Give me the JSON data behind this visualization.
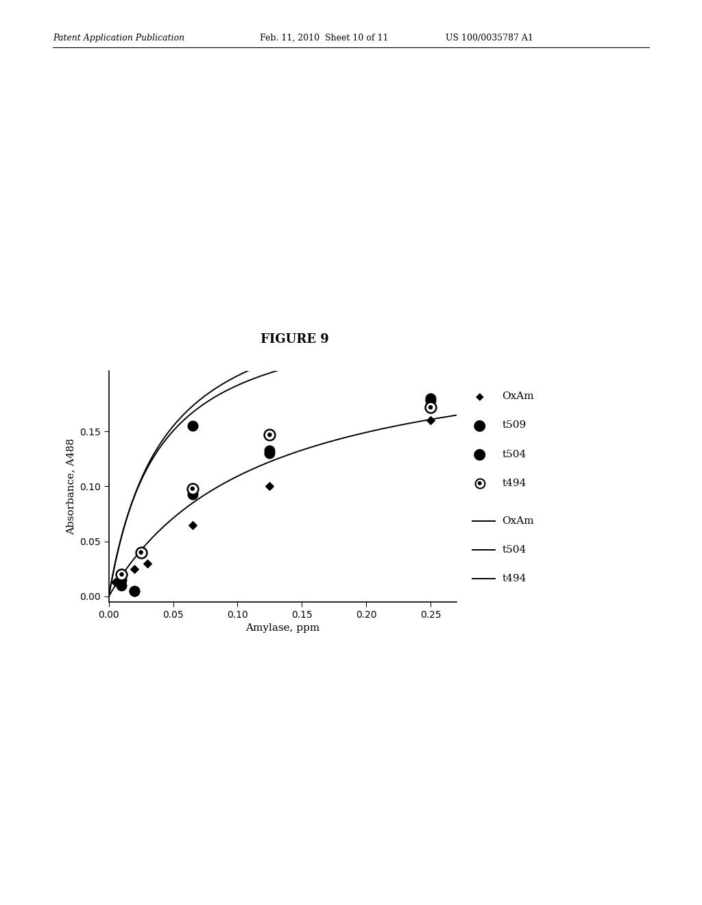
{
  "title": "FIGURE 9",
  "xlabel": "Amylase, ppm",
  "ylabel": "Absorbance, A488",
  "xlim": [
    0,
    0.27
  ],
  "ylim": [
    -0.005,
    0.205
  ],
  "xticks": [
    0,
    0.05,
    0.1,
    0.15,
    0.2,
    0.25
  ],
  "yticks": [
    0,
    0.05,
    0.1,
    0.15
  ],
  "background_color": "#ffffff",
  "OxAm_scatter_x": [
    0.005,
    0.01,
    0.02,
    0.03,
    0.065,
    0.125,
    0.25
  ],
  "OxAm_scatter_y": [
    0.013,
    0.016,
    0.025,
    0.03,
    0.065,
    0.1,
    0.16
  ],
  "t509_scatter_x": [
    0.01,
    0.02,
    0.065,
    0.125,
    0.25
  ],
  "t509_scatter_y": [
    0.015,
    0.005,
    0.155,
    0.13,
    0.18
  ],
  "t504_scatter_x": [
    0.01,
    0.02,
    0.065,
    0.125,
    0.25
  ],
  "t504_scatter_y": [
    0.01,
    0.005,
    0.093,
    0.133,
    0.178
  ],
  "t494_scatter_x": [
    0.01,
    0.025,
    0.065,
    0.125,
    0.25
  ],
  "t494_scatter_y": [
    0.02,
    0.04,
    0.098,
    0.147,
    0.172
  ],
  "Vmax_OxAm": 0.235,
  "Km_OxAm": 0.115,
  "Vmax_t504": 0.285,
  "Km_t504": 0.042,
  "Vmax_t494": 0.265,
  "Km_t494": 0.038,
  "header_left": "Patent Application Publication",
  "header_mid": "Feb. 11, 2010  Sheet 10 of 11",
  "header_right": "US 100/0035787 A1"
}
